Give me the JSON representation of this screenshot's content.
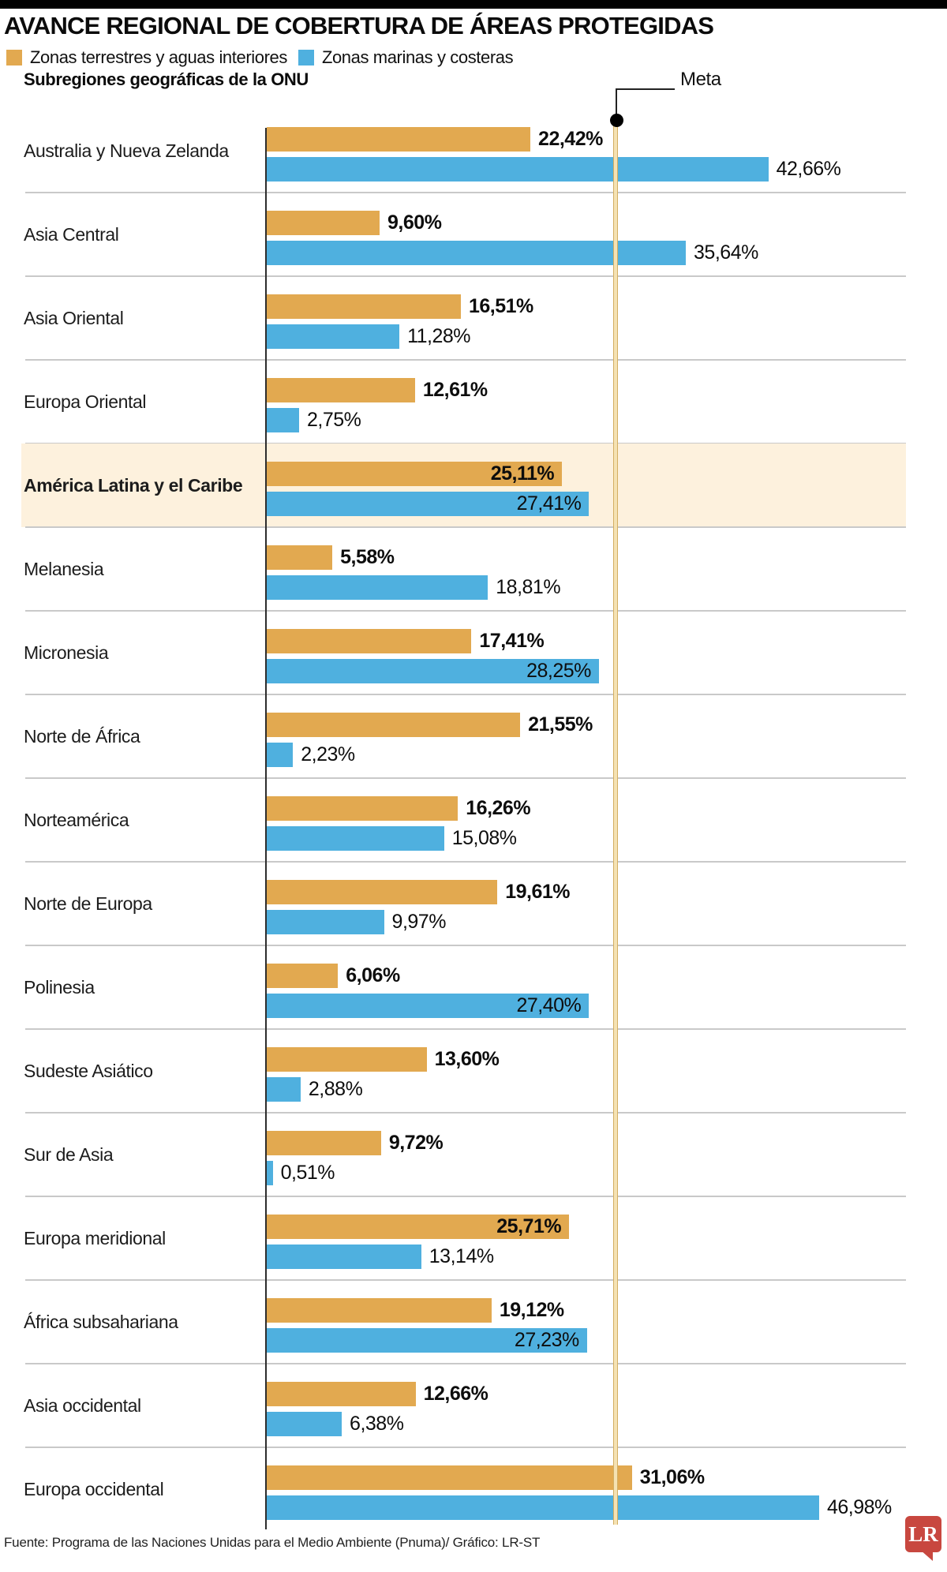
{
  "title": "AVANCE REGIONAL DE COBERTURA DE ÁREAS PROTEGIDAS",
  "legend": {
    "terrestrial": "Zonas terrestres y aguas interiores",
    "marine": "Zonas marinas y costeras"
  },
  "axis_title": "Subregiones geográficas de la ONU",
  "meta": {
    "label": "Meta",
    "value_percent": 30
  },
  "chart_data": {
    "type": "bar",
    "orientation": "horizontal",
    "title": "AVANCE REGIONAL DE COBERTURA DE ÁREAS PROTEGIDAS",
    "value_format": "percent, comma decimal, 2 dp",
    "xlim": [
      0,
      50
    ],
    "grid": false,
    "legend_position": "top",
    "categories": [
      "Australia y Nueva Zelanda",
      "Asia Central",
      "Asia Oriental",
      "Europa Oriental",
      "América Latina y el Caribe",
      "Melanesia",
      "Micronesia",
      "Norte de África",
      "Norteamérica",
      "Norte de Europa",
      "Polinesia",
      "Sudeste Asiático",
      "Sur de Asia",
      "Europa meridional",
      "África subsahariana",
      "Asia occidental",
      "Europa occidental"
    ],
    "highlighted_category": "América Latina y el Caribe",
    "series": [
      {
        "name": "Zonas terrestres y aguas interiores",
        "color": "#e2a950",
        "values": [
          22.42,
          9.6,
          16.51,
          12.61,
          25.11,
          5.58,
          17.41,
          21.55,
          16.26,
          19.61,
          6.06,
          13.6,
          9.72,
          25.71,
          19.12,
          12.66,
          31.06
        ]
      },
      {
        "name": "Zonas marinas y costeras",
        "color": "#4fb0df",
        "values": [
          42.66,
          35.64,
          11.28,
          2.75,
          27.41,
          18.81,
          28.25,
          2.23,
          15.08,
          9.97,
          27.4,
          2.88,
          0.51,
          13.14,
          27.23,
          6.38,
          46.98
        ]
      }
    ],
    "target_line": {
      "label": "Meta",
      "value": 30
    }
  },
  "footer": {
    "source": "Fuente: Programa de las Naciones Unidas para el Medio Ambiente (Pnuma)/ Gráfico: LR-ST",
    "logo_text": "LR"
  },
  "colors": {
    "terrestrial": "#e2a950",
    "marine": "#4fb0df",
    "highlight_band": "#fdf1dd",
    "meta_line_fill": "#f5e2b3",
    "meta_line_edge": "#d3ae62",
    "separator": "#c9c9c9",
    "top_bar": "#000000",
    "logo_red": "#c8473f"
  }
}
